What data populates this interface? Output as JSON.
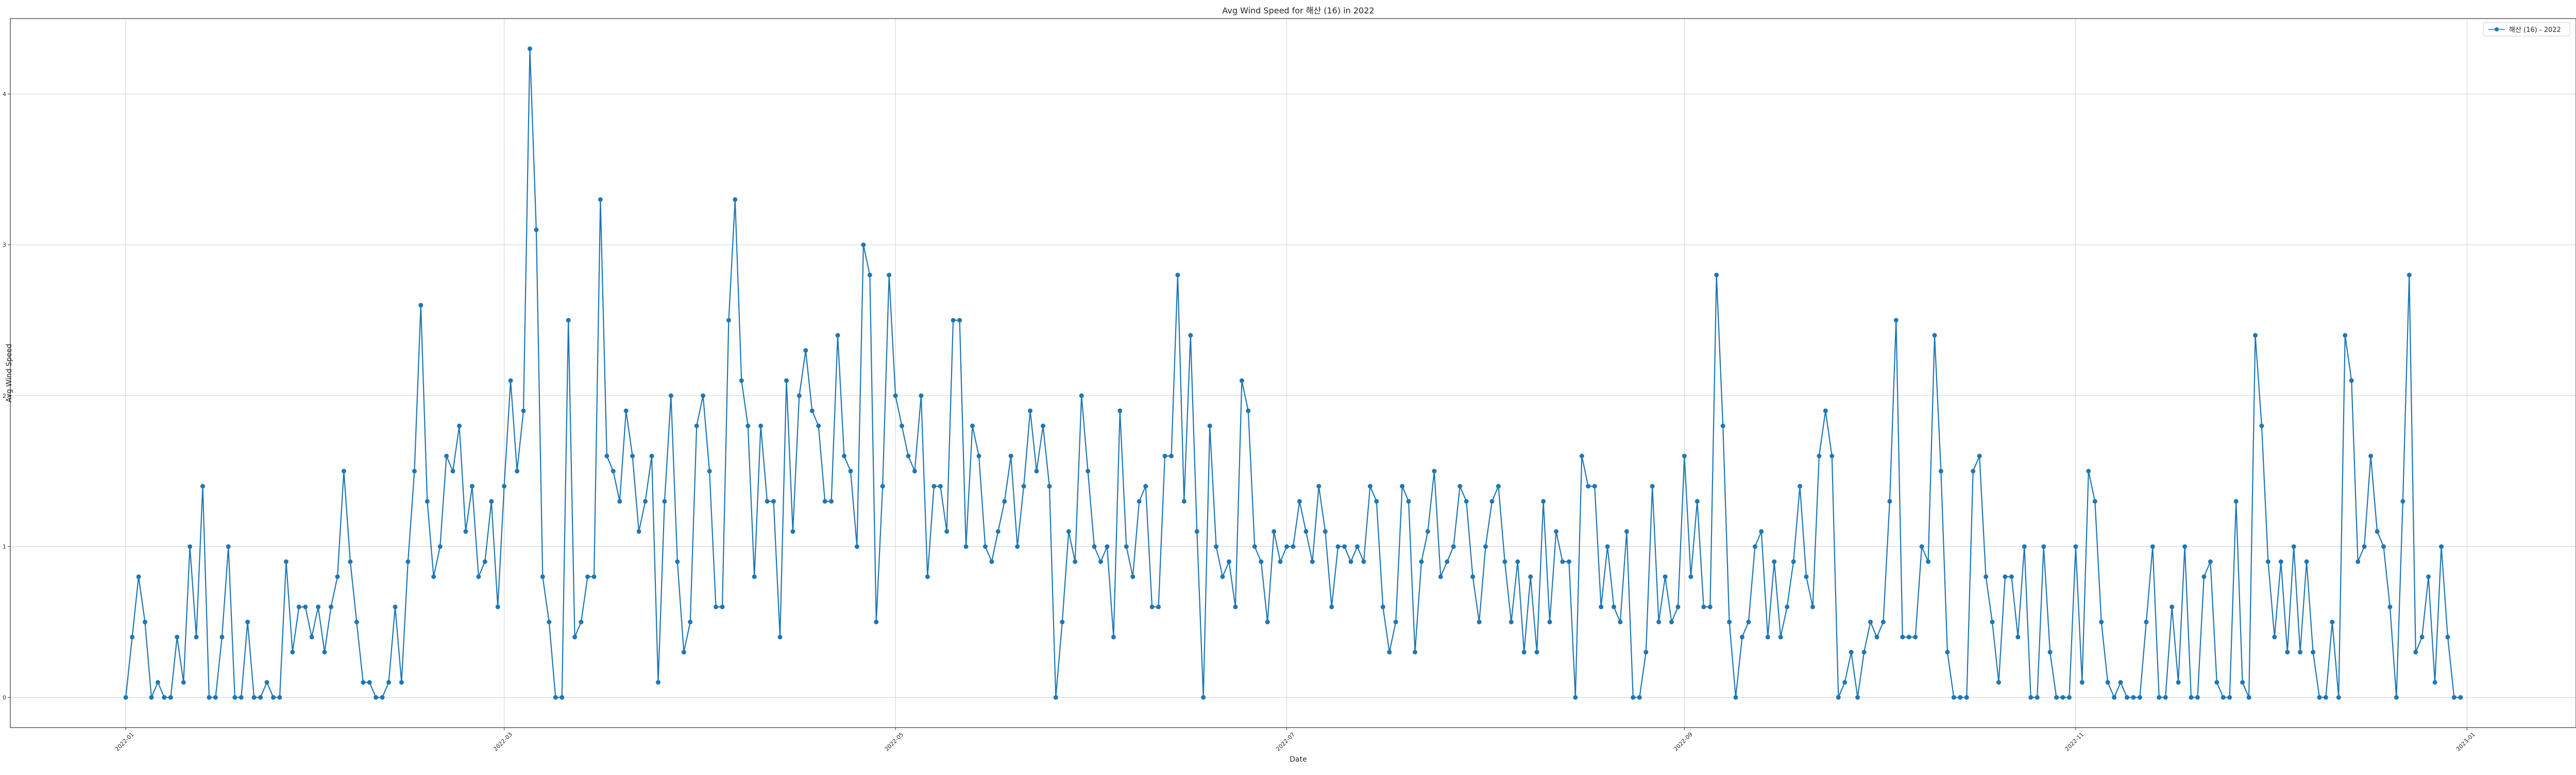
{
  "chart_data": {
    "type": "line",
    "title": "Avg Wind Speed for 해산 (16) in 2022",
    "xlabel": "Date",
    "ylabel": "Avg Wind Speed",
    "x_ticks": [
      "2022-01",
      "2022-03",
      "2022-05",
      "2022-07",
      "2022-09",
      "2022-11",
      "2023-01"
    ],
    "y_ticks": [
      "0",
      "1",
      "2",
      "3",
      "4"
    ],
    "xlim": [
      "2021-12-14",
      "2023-01-18"
    ],
    "ylim": [
      -0.2,
      4.5
    ],
    "grid": true,
    "legend_position": "top-right",
    "colors": {
      "series": "#1f77b4",
      "grid": "#d0d0d0",
      "axis": "#333333"
    },
    "series": [
      {
        "name": "해산 (16) - 2022",
        "start_date": "2022-01-01",
        "values": [
          0,
          0.4,
          0.8,
          0.5,
          0,
          0.1,
          0,
          0,
          0.4,
          0.1,
          1,
          0.4,
          1.4,
          0,
          0,
          0.4,
          1,
          0,
          0,
          0.5,
          0,
          0,
          0.1,
          0,
          0,
          0.9,
          0.3,
          0.6,
          0.6,
          0.4,
          0.6,
          0.3,
          0.6,
          0.8,
          1.5,
          0.9,
          0.5,
          0.1,
          0.1,
          0,
          0,
          0.1,
          0.6,
          0.1,
          0.9,
          1.5,
          2.6,
          1.3,
          0.8,
          1,
          1.6,
          1.5,
          1.8,
          1.1,
          1.4,
          0.8,
          0.9,
          1.3,
          0.6,
          1.4,
          2.1,
          1.5,
          1.9,
          4.3,
          3.1,
          0.8,
          0.5,
          0,
          0,
          2.5,
          0.4,
          0.5,
          0.8,
          0.8,
          3.3,
          1.6,
          1.5,
          1.3,
          1.9,
          1.6,
          1.1,
          1.3,
          1.6,
          0.1,
          1.3,
          2,
          0.9,
          0.3,
          0.5,
          1.8,
          2,
          1.5,
          0.6,
          0.6,
          2.5,
          3.3,
          2.1,
          1.8,
          0.8,
          1.8,
          1.3,
          1.3,
          0.4,
          2.1,
          1.1,
          2,
          2.3,
          1.9,
          1.8,
          1.3,
          1.3,
          2.4,
          1.6,
          1.5,
          1,
          3,
          2.8,
          0.5,
          1.4,
          2.8,
          2,
          1.8,
          1.6,
          1.5,
          2,
          0.8,
          1.4,
          1.4,
          1.1,
          2.5,
          2.5,
          1,
          1.8,
          1.6,
          1,
          0.9,
          1.1,
          1.3,
          1.6,
          1,
          1.4,
          1.9,
          1.5,
          1.8,
          1.4,
          0,
          0.5,
          1.1,
          0.9,
          2,
          1.5,
          1,
          0.9,
          1,
          0.4,
          1.9,
          1,
          0.8,
          1.3,
          1.4,
          0.6,
          0.6,
          1.6,
          1.6,
          2.8,
          1.3,
          2.4,
          1.1,
          0,
          1.8,
          1,
          0.8,
          0.9,
          0.6,
          2.1,
          1.9,
          1,
          0.9,
          0.5,
          1.1,
          0.9,
          1,
          1,
          1.3,
          1.1,
          0.9,
          1.4,
          1.1,
          0.6,
          1,
          1,
          0.9,
          1,
          0.9,
          1.4,
          1.3,
          0.6,
          0.3,
          0.5,
          1.4,
          1.3,
          0.3,
          0.9,
          1.1,
          1.5,
          0.8,
          0.9,
          1,
          1.4,
          1.3,
          0.8,
          0.5,
          1,
          1.3,
          1.4,
          0.9,
          0.5,
          0.9,
          0.3,
          0.8,
          0.3,
          1.3,
          0.5,
          1.1,
          0.9,
          0.9,
          0,
          1.6,
          1.4,
          1.4,
          0.6,
          1,
          0.6,
          0.5,
          1.1,
          0,
          0,
          0.3,
          1.4,
          0.5,
          0.8,
          0.5,
          0.6,
          1.6,
          0.8,
          1.3,
          0.6,
          0.6,
          2.8,
          1.8,
          0.5,
          0,
          0.4,
          0.5,
          1,
          1.1,
          0.4,
          0.9,
          0.4,
          0.6,
          0.9,
          1.4,
          0.8,
          0.6,
          1.6,
          1.9,
          1.6,
          0,
          0.1,
          0.3,
          0,
          0.3,
          0.5,
          0.4,
          0.5,
          1.3,
          2.5,
          0.4,
          0.4,
          0.4,
          1,
          0.9,
          2.4,
          1.5,
          0.3,
          0,
          0,
          0,
          1.5,
          1.6,
          0.8,
          0.5,
          0.1,
          0.8,
          0.8,
          0.4,
          1,
          0,
          0,
          1,
          0.3,
          0,
          0,
          0,
          1,
          0.1,
          1.5,
          1.3,
          0.5,
          0.1,
          0,
          0.1,
          0,
          0,
          0,
          0.5,
          1,
          0,
          0,
          0.6,
          0.1,
          1,
          0,
          0,
          0.8,
          0.9,
          0.1,
          0,
          0,
          1.3,
          0.1,
          0,
          2.4,
          1.8,
          0.9,
          0.4,
          0.9,
          0.3,
          1,
          0.3,
          0.9,
          0.3,
          0,
          0,
          0.5,
          0,
          2.4,
          2.1,
          0.9,
          1,
          1.6,
          1.1,
          1,
          0.6,
          0,
          1.3,
          2.8,
          0.3,
          0.4,
          0.8,
          0.1,
          1,
          0.4,
          0,
          0
        ]
      }
    ]
  }
}
